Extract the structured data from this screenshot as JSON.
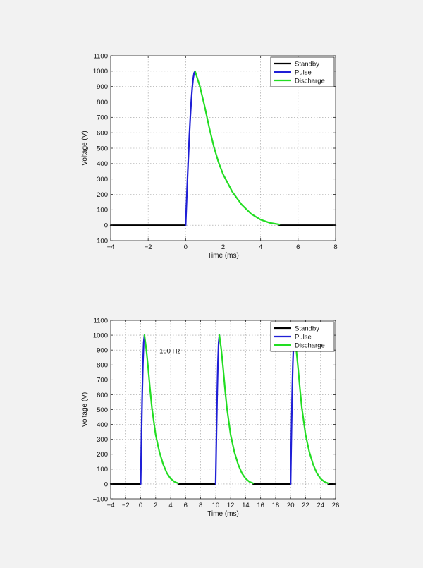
{
  "background_color": "#f2f2f2",
  "chart_data": [
    {
      "type": "line",
      "xlabel": "Time (ms)",
      "ylabel": "Voltage (V)",
      "xlim": [
        -4,
        8
      ],
      "ylim": [
        -100,
        1100
      ],
      "xticks": [
        -4,
        -2,
        0,
        2,
        4,
        6,
        8
      ],
      "yticks": [
        -100,
        0,
        100,
        200,
        300,
        400,
        500,
        600,
        700,
        800,
        900,
        1000,
        1100
      ],
      "grid": true,
      "legend": {
        "placement": "top-right",
        "entries": [
          "Standby",
          "Pulse",
          "Discharge"
        ]
      },
      "annotations": [],
      "series": [
        {
          "name": "Standby",
          "color": "#000000",
          "points": [
            [
              -4,
              0
            ],
            [
              0,
              0
            ]
          ]
        },
        {
          "name": "Standby",
          "color": "#000000",
          "points": [
            [
              5,
              0
            ],
            [
              8,
              0
            ]
          ]
        },
        {
          "name": "Pulse",
          "color": "#1f1fd6",
          "points": [
            [
              0,
              0
            ],
            [
              0.05,
              157
            ],
            [
              0.1,
              309
            ],
            [
              0.15,
              454
            ],
            [
              0.2,
              588
            ],
            [
              0.25,
              707
            ],
            [
              0.3,
              809
            ],
            [
              0.35,
              891
            ],
            [
              0.4,
              951
            ],
            [
              0.45,
              988
            ],
            [
              0.5,
              1000
            ]
          ]
        },
        {
          "name": "Discharge",
          "color": "#22dd22",
          "points": [
            [
              0.5,
              1000
            ],
            [
              0.75,
              905
            ],
            [
              1,
              779
            ],
            [
              1.25,
              638
            ],
            [
              1.5,
              512
            ],
            [
              1.75,
              410
            ],
            [
              2,
              330
            ],
            [
              2.5,
              215
            ],
            [
              3,
              132
            ],
            [
              3.5,
              73
            ],
            [
              4,
              36
            ],
            [
              4.5,
              15
            ],
            [
              5,
              5
            ]
          ]
        }
      ]
    },
    {
      "type": "line",
      "xlabel": "Time (ms)",
      "ylabel": "Voltage (V)",
      "xlim": [
        -4,
        26
      ],
      "ylim": [
        -100,
        1100
      ],
      "xticks": [
        -4,
        -2,
        0,
        2,
        4,
        6,
        8,
        10,
        12,
        14,
        16,
        18,
        20,
        22,
        24,
        26
      ],
      "yticks": [
        -100,
        0,
        100,
        200,
        300,
        400,
        500,
        600,
        700,
        800,
        900,
        1000,
        1100
      ],
      "grid": true,
      "legend": {
        "placement": "top-right",
        "entries": [
          "Standby",
          "Pulse",
          "Discharge"
        ]
      },
      "annotations": [
        {
          "text": "100 Hz",
          "x": 2.5,
          "y": 880
        }
      ],
      "series": [
        {
          "name": "Standby",
          "color": "#000000",
          "points": [
            [
              -4,
              0
            ],
            [
              0,
              0
            ]
          ]
        },
        {
          "name": "Standby",
          "color": "#000000",
          "points": [
            [
              5,
              0
            ],
            [
              10,
              0
            ]
          ]
        },
        {
          "name": "Standby",
          "color": "#000000",
          "points": [
            [
              15,
              0
            ],
            [
              20,
              0
            ]
          ]
        },
        {
          "name": "Standby",
          "color": "#000000",
          "points": [
            [
              25,
              0
            ],
            [
              26,
              0
            ]
          ]
        },
        {
          "name": "Pulse",
          "color": "#1f1fd6",
          "points": [
            [
              0,
              0
            ],
            [
              0.1,
              309
            ],
            [
              0.2,
              588
            ],
            [
              0.3,
              809
            ],
            [
              0.4,
              951
            ],
            [
              0.5,
              1000
            ]
          ]
        },
        {
          "name": "Pulse",
          "color": "#1f1fd6",
          "points": [
            [
              10,
              0
            ],
            [
              10.1,
              309
            ],
            [
              10.2,
              588
            ],
            [
              10.3,
              809
            ],
            [
              10.4,
              951
            ],
            [
              10.5,
              1000
            ]
          ]
        },
        {
          "name": "Pulse",
          "color": "#1f1fd6",
          "points": [
            [
              20,
              0
            ],
            [
              20.1,
              309
            ],
            [
              20.2,
              588
            ],
            [
              20.3,
              809
            ],
            [
              20.4,
              951
            ],
            [
              20.5,
              1000
            ]
          ]
        },
        {
          "name": "Discharge",
          "color": "#22dd22",
          "points": [
            [
              0.5,
              1000
            ],
            [
              0.75,
              905
            ],
            [
              1,
              779
            ],
            [
              1.25,
              638
            ],
            [
              1.5,
              512
            ],
            [
              2,
              330
            ],
            [
              2.5,
              215
            ],
            [
              3,
              132
            ],
            [
              3.5,
              73
            ],
            [
              4,
              36
            ],
            [
              4.5,
              15
            ],
            [
              5,
              5
            ]
          ]
        },
        {
          "name": "Discharge",
          "color": "#22dd22",
          "points": [
            [
              10.5,
              1000
            ],
            [
              10.75,
              905
            ],
            [
              11,
              779
            ],
            [
              11.25,
              638
            ],
            [
              11.5,
              512
            ],
            [
              12,
              330
            ],
            [
              12.5,
              215
            ],
            [
              13,
              132
            ],
            [
              13.5,
              73
            ],
            [
              14,
              36
            ],
            [
              14.5,
              15
            ],
            [
              15,
              5
            ]
          ]
        },
        {
          "name": "Discharge",
          "color": "#22dd22",
          "points": [
            [
              20.5,
              1000
            ],
            [
              20.75,
              905
            ],
            [
              21,
              779
            ],
            [
              21.25,
              638
            ],
            [
              21.5,
              512
            ],
            [
              22,
              330
            ],
            [
              22.5,
              215
            ],
            [
              23,
              132
            ],
            [
              23.5,
              73
            ],
            [
              24,
              36
            ],
            [
              24.5,
              15
            ],
            [
              25,
              5
            ]
          ]
        }
      ]
    }
  ]
}
